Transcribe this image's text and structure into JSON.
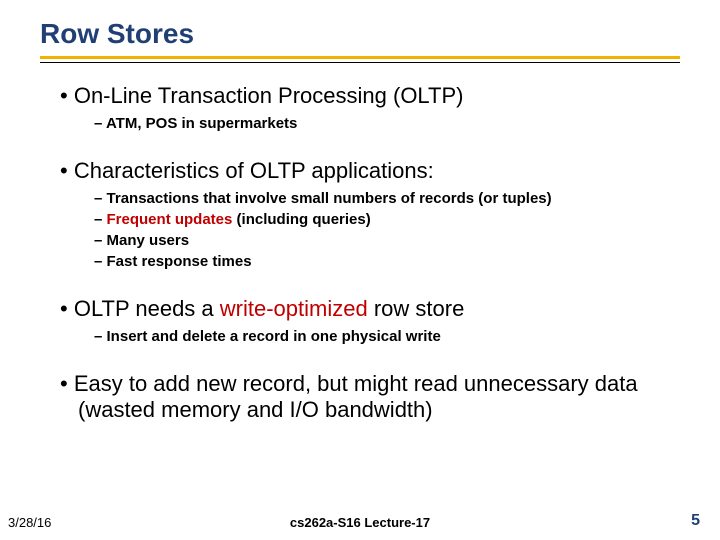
{
  "colors": {
    "title": "#204075",
    "accent_rule": "#f2b200",
    "thin_rule": "#000000",
    "body_text": "#000000",
    "highlight": "#c00000",
    "page_num": "#204075",
    "background": "#ffffff"
  },
  "typography": {
    "title_fontsize": 28,
    "lvl1_fontsize": 22,
    "lvl2_fontsize": 15,
    "footer_fontsize": 13,
    "page_num_fontsize": 16,
    "font_family": "Arial"
  },
  "title": "Row Stores",
  "blocks": [
    {
      "text": "On-Line Transaction Processing (OLTP)",
      "sub": [
        {
          "text": "ATM, POS in supermarkets"
        }
      ]
    },
    {
      "text": "Characteristics of OLTP applications:",
      "sub": [
        {
          "text": "Transactions that involve small numbers of records (or tuples)"
        },
        {
          "prefix": "Frequent updates",
          "prefix_accent": true,
          "rest": " (including queries)"
        },
        {
          "text": "Many users"
        },
        {
          "text": "Fast response times"
        }
      ]
    },
    {
      "pre": "OLTP needs a ",
      "accent": "write-optimized",
      "post": " row store",
      "sub": [
        {
          "text": "Insert and delete a record in one physical write"
        }
      ]
    },
    {
      "text": "Easy to add new record, but might read unnecessary data (wasted memory and I/O bandwidth)",
      "sub": []
    }
  ],
  "footer": {
    "date": "3/28/16",
    "center": "cs262a-S16 Lecture-17",
    "page": "5"
  }
}
